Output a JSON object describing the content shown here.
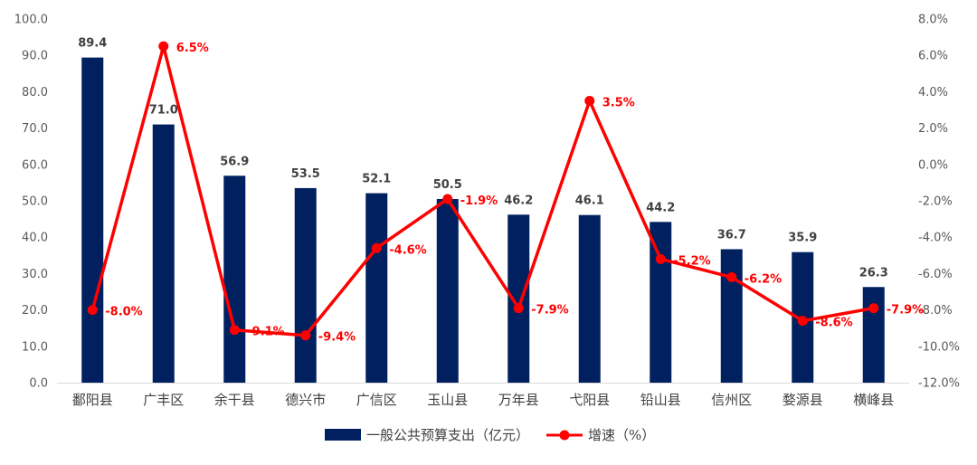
{
  "chart_data": {
    "type": "bar",
    "categories": [
      "鄱阳县",
      "广丰区",
      "余干县",
      "德兴市",
      "广信区",
      "玉山县",
      "万年县",
      "弋阳县",
      "铅山县",
      "信州区",
      "婺源县",
      "横峰县"
    ],
    "series": [
      {
        "name": "一般公共预算支出（亿元）",
        "type": "bar",
        "axis": "left",
        "color": "#002060",
        "values": [
          89.4,
          71.0,
          56.9,
          53.5,
          52.1,
          50.5,
          46.2,
          46.1,
          44.2,
          36.7,
          35.9,
          26.3
        ],
        "labels": [
          "89.4",
          "71.0",
          "56.9",
          "53.5",
          "52.1",
          "50.5",
          "46.2",
          "46.1",
          "44.2",
          "36.7",
          "35.9",
          "26.3"
        ]
      },
      {
        "name": "增速（%）",
        "type": "line",
        "axis": "right",
        "color": "#ff0000",
        "values": [
          -8.0,
          6.5,
          -9.1,
          -9.4,
          -4.6,
          -1.9,
          -7.9,
          3.5,
          -5.2,
          -6.2,
          -8.6,
          -7.9
        ],
        "labels": [
          "-8.0%",
          "6.5%",
          "-9.1%",
          "-9.4%",
          "-4.6%",
          "-1.9%",
          "-7.9%",
          "3.5%",
          "-5.2%",
          "-6.2%",
          "-8.6%",
          "-7.9%"
        ]
      }
    ],
    "left_axis": {
      "ylim": [
        0,
        100
      ],
      "ticks": [
        "0.0",
        "10.0",
        "20.0",
        "30.0",
        "40.0",
        "50.0",
        "60.0",
        "70.0",
        "80.0",
        "90.0",
        "100.0"
      ]
    },
    "right_axis": {
      "ylim": [
        -12,
        8
      ],
      "ticks": [
        "-12.0%",
        "-10.0%",
        "-8.0%",
        "-6.0%",
        "-4.0%",
        "-2.0%",
        "0.0%",
        "2.0%",
        "4.0%",
        "6.0%",
        "8.0%"
      ]
    },
    "grid": false,
    "legend_position": "bottom"
  }
}
